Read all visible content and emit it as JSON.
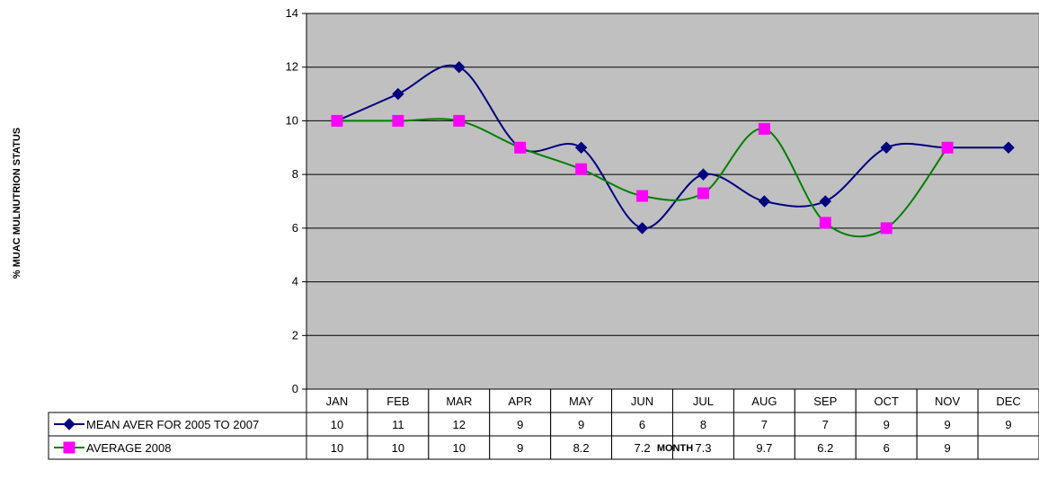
{
  "chart_data": {
    "type": "line",
    "title": "",
    "xlabel": "MONTH",
    "ylabel": "% MUAC  MULNUTRION STATUS",
    "ylim": [
      0,
      14
    ],
    "yticks": [
      0,
      2,
      4,
      6,
      8,
      10,
      12,
      14
    ],
    "categories": [
      "JAN",
      "FEB",
      "MAR",
      "APR",
      "MAY",
      "JUN",
      "JUL",
      "AUG",
      "SEP",
      "OCT",
      "NOV",
      "DEC"
    ],
    "grid": true,
    "legend": "data-table-left",
    "series": [
      {
        "name": "MEAN AVER FOR 2005 TO 2007",
        "values": [
          10,
          11,
          12,
          9,
          9,
          6,
          8,
          7,
          7,
          9,
          9,
          9
        ],
        "table_values": [
          "10",
          "11",
          "12",
          "9",
          "9",
          "6",
          "8",
          "7",
          "7",
          "9",
          "9",
          "9"
        ],
        "line_color": "#000080",
        "marker": "diamond",
        "marker_color": "#000080"
      },
      {
        "name": "AVERAGE 2008",
        "values": [
          10,
          10,
          10,
          9,
          8.2,
          7.2,
          7.3,
          9.7,
          6.2,
          6,
          9,
          null
        ],
        "table_values": [
          "10",
          "10",
          "10",
          "9",
          "8.2",
          "7.2",
          "7.3",
          "9.7",
          "6.2",
          "6",
          "9",
          ""
        ],
        "line_color": "#008000",
        "marker": "square",
        "marker_color": "#FF00FF"
      }
    ],
    "plot_background": "#C0C0C0"
  }
}
